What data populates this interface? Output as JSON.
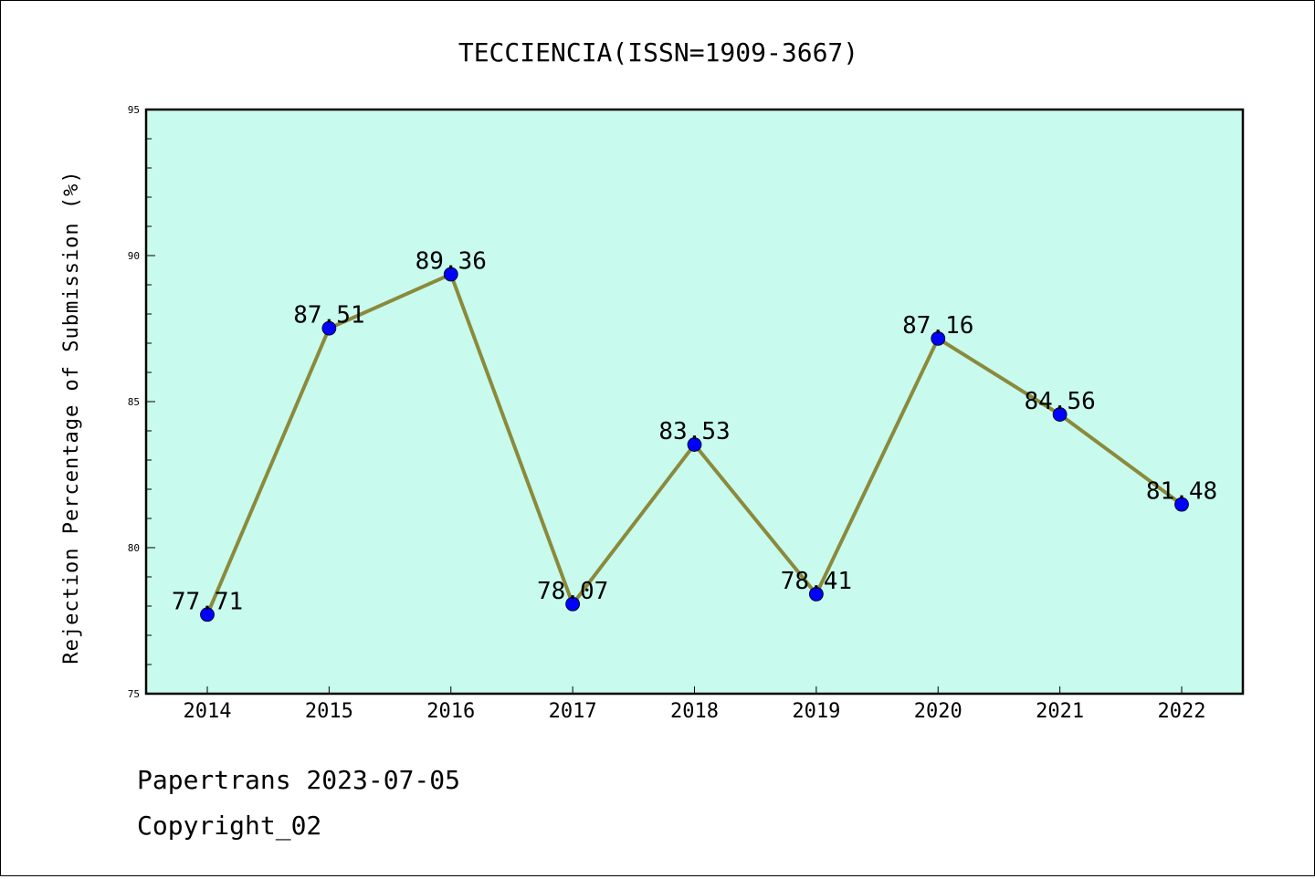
{
  "chart_data": {
    "type": "line",
    "title": "TECCIENCIA(ISSN=1909-3667)",
    "xlabel": "",
    "ylabel": "Rejection Percentage of Submission (%)",
    "categories": [
      "2014",
      "2015",
      "2016",
      "2017",
      "2018",
      "2019",
      "2020",
      "2021",
      "2022"
    ],
    "values": [
      77.71,
      87.51,
      89.36,
      78.07,
      83.53,
      78.41,
      87.16,
      84.56,
      81.48
    ],
    "data_labels": [
      "77.71",
      "87.51",
      "89.36",
      "78.07",
      "83.53",
      "78.41",
      "87.16",
      "84.56",
      "81.48"
    ],
    "ylim": [
      75,
      95
    ],
    "yticks": [
      "75",
      "80",
      "85",
      "90",
      "95"
    ],
    "grid": false,
    "legend": "none",
    "colors": {
      "plot_background": "#c8fbee",
      "line": "#8b8a3c",
      "marker": "#0000ff"
    }
  },
  "footer": {
    "line1": "Papertrans 2023-07-05",
    "line2": "Copyright_02"
  }
}
